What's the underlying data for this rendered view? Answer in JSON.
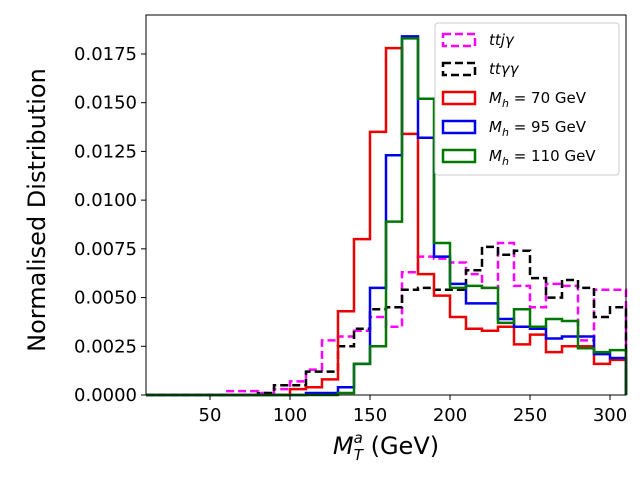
{
  "chart_data": {
    "type": "histogram",
    "title": "",
    "xlabel_main": "M",
    "xlabel_sup": "a",
    "xlabel_sub": "T",
    "xlabel_unit": " (GeV)",
    "ylabel": "Normalised Distribution",
    "xlim": [
      10,
      310
    ],
    "ylim": [
      0,
      0.0195
    ],
    "xticks": [
      50,
      100,
      150,
      200,
      250,
      300
    ],
    "xtick_labels": [
      "50",
      "100",
      "150",
      "200",
      "250",
      "300"
    ],
    "yticks": [
      0,
      0.0025,
      0.005,
      0.0075,
      0.01,
      0.0125,
      0.015,
      0.0175
    ],
    "ytick_labels": [
      "0.0000",
      "0.0025",
      "0.0050",
      "0.0075",
      "0.0100",
      "0.0125",
      "0.0150",
      "0.0175"
    ],
    "bin_edges": [
      10,
      20,
      30,
      40,
      50,
      60,
      70,
      80,
      90,
      100,
      110,
      120,
      130,
      140,
      150,
      160,
      170,
      180,
      190,
      200,
      210,
      220,
      230,
      240,
      250,
      260,
      270,
      280,
      290,
      300,
      310
    ],
    "legend_position": "top-right",
    "series": [
      {
        "name": "ttjγ",
        "legend_html": "ttjγ",
        "color": "#ff00ff",
        "dashed": true,
        "values": [
          0,
          0,
          0,
          0,
          0,
          0.0002,
          0.0002,
          0.0001,
          0.0003,
          0.0007,
          0.0013,
          0.0028,
          0.003,
          0.0033,
          0.004,
          0.0035,
          0.0063,
          0.0071,
          0.007,
          0.0068,
          0.0062,
          0.0055,
          0.0078,
          0.0056,
          0.0045,
          0.0057,
          0.0056,
          0.0028,
          0.0054,
          0.0054
        ]
      },
      {
        "name": "ttγγ",
        "legend_html": "ttγγ",
        "color": "#000000",
        "dashed": true,
        "values": [
          0,
          0,
          0,
          0,
          0,
          0,
          0,
          0.0001,
          0.0005,
          0.0005,
          0.0012,
          0.0012,
          0.0025,
          0.0034,
          0.0044,
          0.0045,
          0.0054,
          0.0055,
          0.0054,
          0.0054,
          0.0064,
          0.0076,
          0.0072,
          0.0074,
          0.006,
          0.005,
          0.0059,
          0.0055,
          0.004,
          0.0045
        ]
      },
      {
        "name": "M_h = 70  GeV",
        "legend_label": "M",
        "legend_sub": "h",
        "legend_rest": " = 70  GeV",
        "color": "#ee0000",
        "dashed": false,
        "values": [
          0,
          0,
          0,
          0,
          0,
          0,
          0,
          0,
          0,
          0.0003,
          0.0004,
          0.0008,
          0.0043,
          0.008,
          0.0135,
          0.0178,
          0.0134,
          0.0062,
          0.0051,
          0.004,
          0.0034,
          0.0033,
          0.0035,
          0.0026,
          0.0031,
          0.0022,
          0.0025,
          0.0025,
          0.0016,
          0.0018
        ]
      },
      {
        "name": "M_h = 95  GeV",
        "legend_label": "M",
        "legend_sub": "h",
        "legend_rest": " = 95  GeV",
        "color": "#0000ee",
        "dashed": false,
        "values": [
          0,
          0,
          0,
          0,
          0,
          0,
          0,
          0,
          0,
          0,
          0.0001,
          0.0001,
          0.0004,
          0.0016,
          0.0055,
          0.0123,
          0.0184,
          0.0132,
          0.0071,
          0.0057,
          0.0047,
          0.0047,
          0.0039,
          0.0035,
          0.0034,
          0.0029,
          0.003,
          0.003,
          0.0021,
          0.0019
        ]
      },
      {
        "name": "M_h = 110  GeV",
        "legend_label": "M",
        "legend_sub": "h",
        "legend_rest": " = 110  GeV",
        "color": "#007700",
        "dashed": false,
        "values": [
          0,
          0,
          0,
          0,
          0,
          0,
          0,
          0,
          0,
          0,
          0,
          0,
          0.0001,
          0.0016,
          0.0025,
          0.0089,
          0.0183,
          0.0152,
          0.0078,
          0.0055,
          0.0056,
          0.0055,
          0.0037,
          0.0044,
          0.0035,
          0.0039,
          0.0038,
          0.0024,
          0.0022,
          0.0023
        ]
      }
    ]
  }
}
